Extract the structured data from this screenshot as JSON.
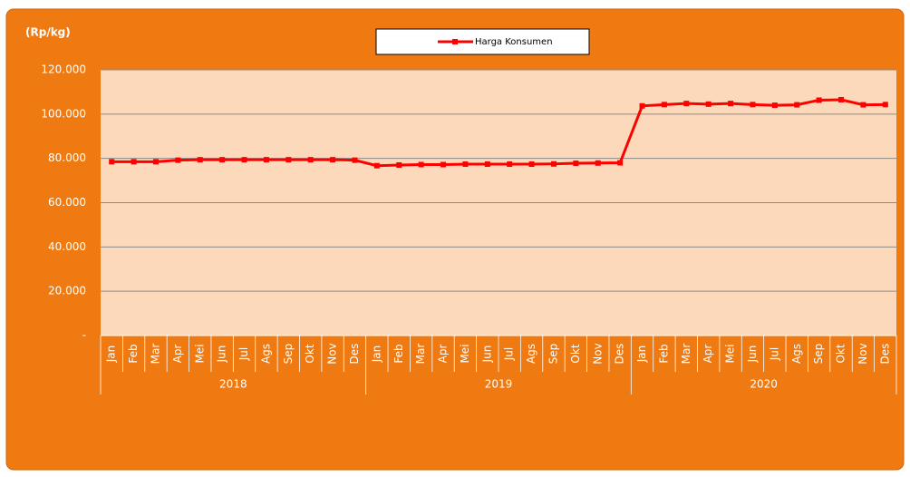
{
  "chart_data": {
    "type": "line",
    "y_label": "(Rp/kg)",
    "categories": [
      "Jan",
      "Feb",
      "Mar",
      "Apr",
      "Mei",
      "Jun",
      "Jul",
      "Ags",
      "Sep",
      "Okt",
      "Nov",
      "Des",
      "Jan",
      "Feb",
      "Mar",
      "Apr",
      "Mei",
      "Jun",
      "Jul",
      "Ags",
      "Sep",
      "Okt",
      "Nov",
      "Des",
      "Jan",
      "Feb",
      "Mar",
      "Apr",
      "Mei",
      "Jun",
      "Jul",
      "Ags",
      "Sep",
      "Okt",
      "Nov",
      "Des"
    ],
    "groups": [
      "2018",
      "2019",
      "2020"
    ],
    "series": [
      {
        "name": "Harga Konsumen",
        "color": "#ff0000",
        "values": [
          78500,
          78500,
          78500,
          79200,
          79400,
          79400,
          79400,
          79400,
          79400,
          79400,
          79400,
          79200,
          76700,
          77000,
          77200,
          77200,
          77400,
          77400,
          77400,
          77400,
          77500,
          77800,
          77900,
          78000,
          103700,
          104300,
          104800,
          104500,
          104800,
          104300,
          104000,
          104200,
          106300,
          106500,
          104200,
          104300
        ]
      }
    ],
    "ylim": [
      0,
      120000
    ],
    "yticks": [
      {
        "value": 0,
        "label": "-"
      },
      {
        "value": 20000,
        "label": "20.000"
      },
      {
        "value": 40000,
        "label": "40.000"
      },
      {
        "value": 60000,
        "label": "60.000"
      },
      {
        "value": 80000,
        "label": "80.000"
      },
      {
        "value": 100000,
        "label": "100.000"
      },
      {
        "value": 120000,
        "label": "120.000"
      }
    ],
    "grid": true,
    "legend": "top"
  }
}
